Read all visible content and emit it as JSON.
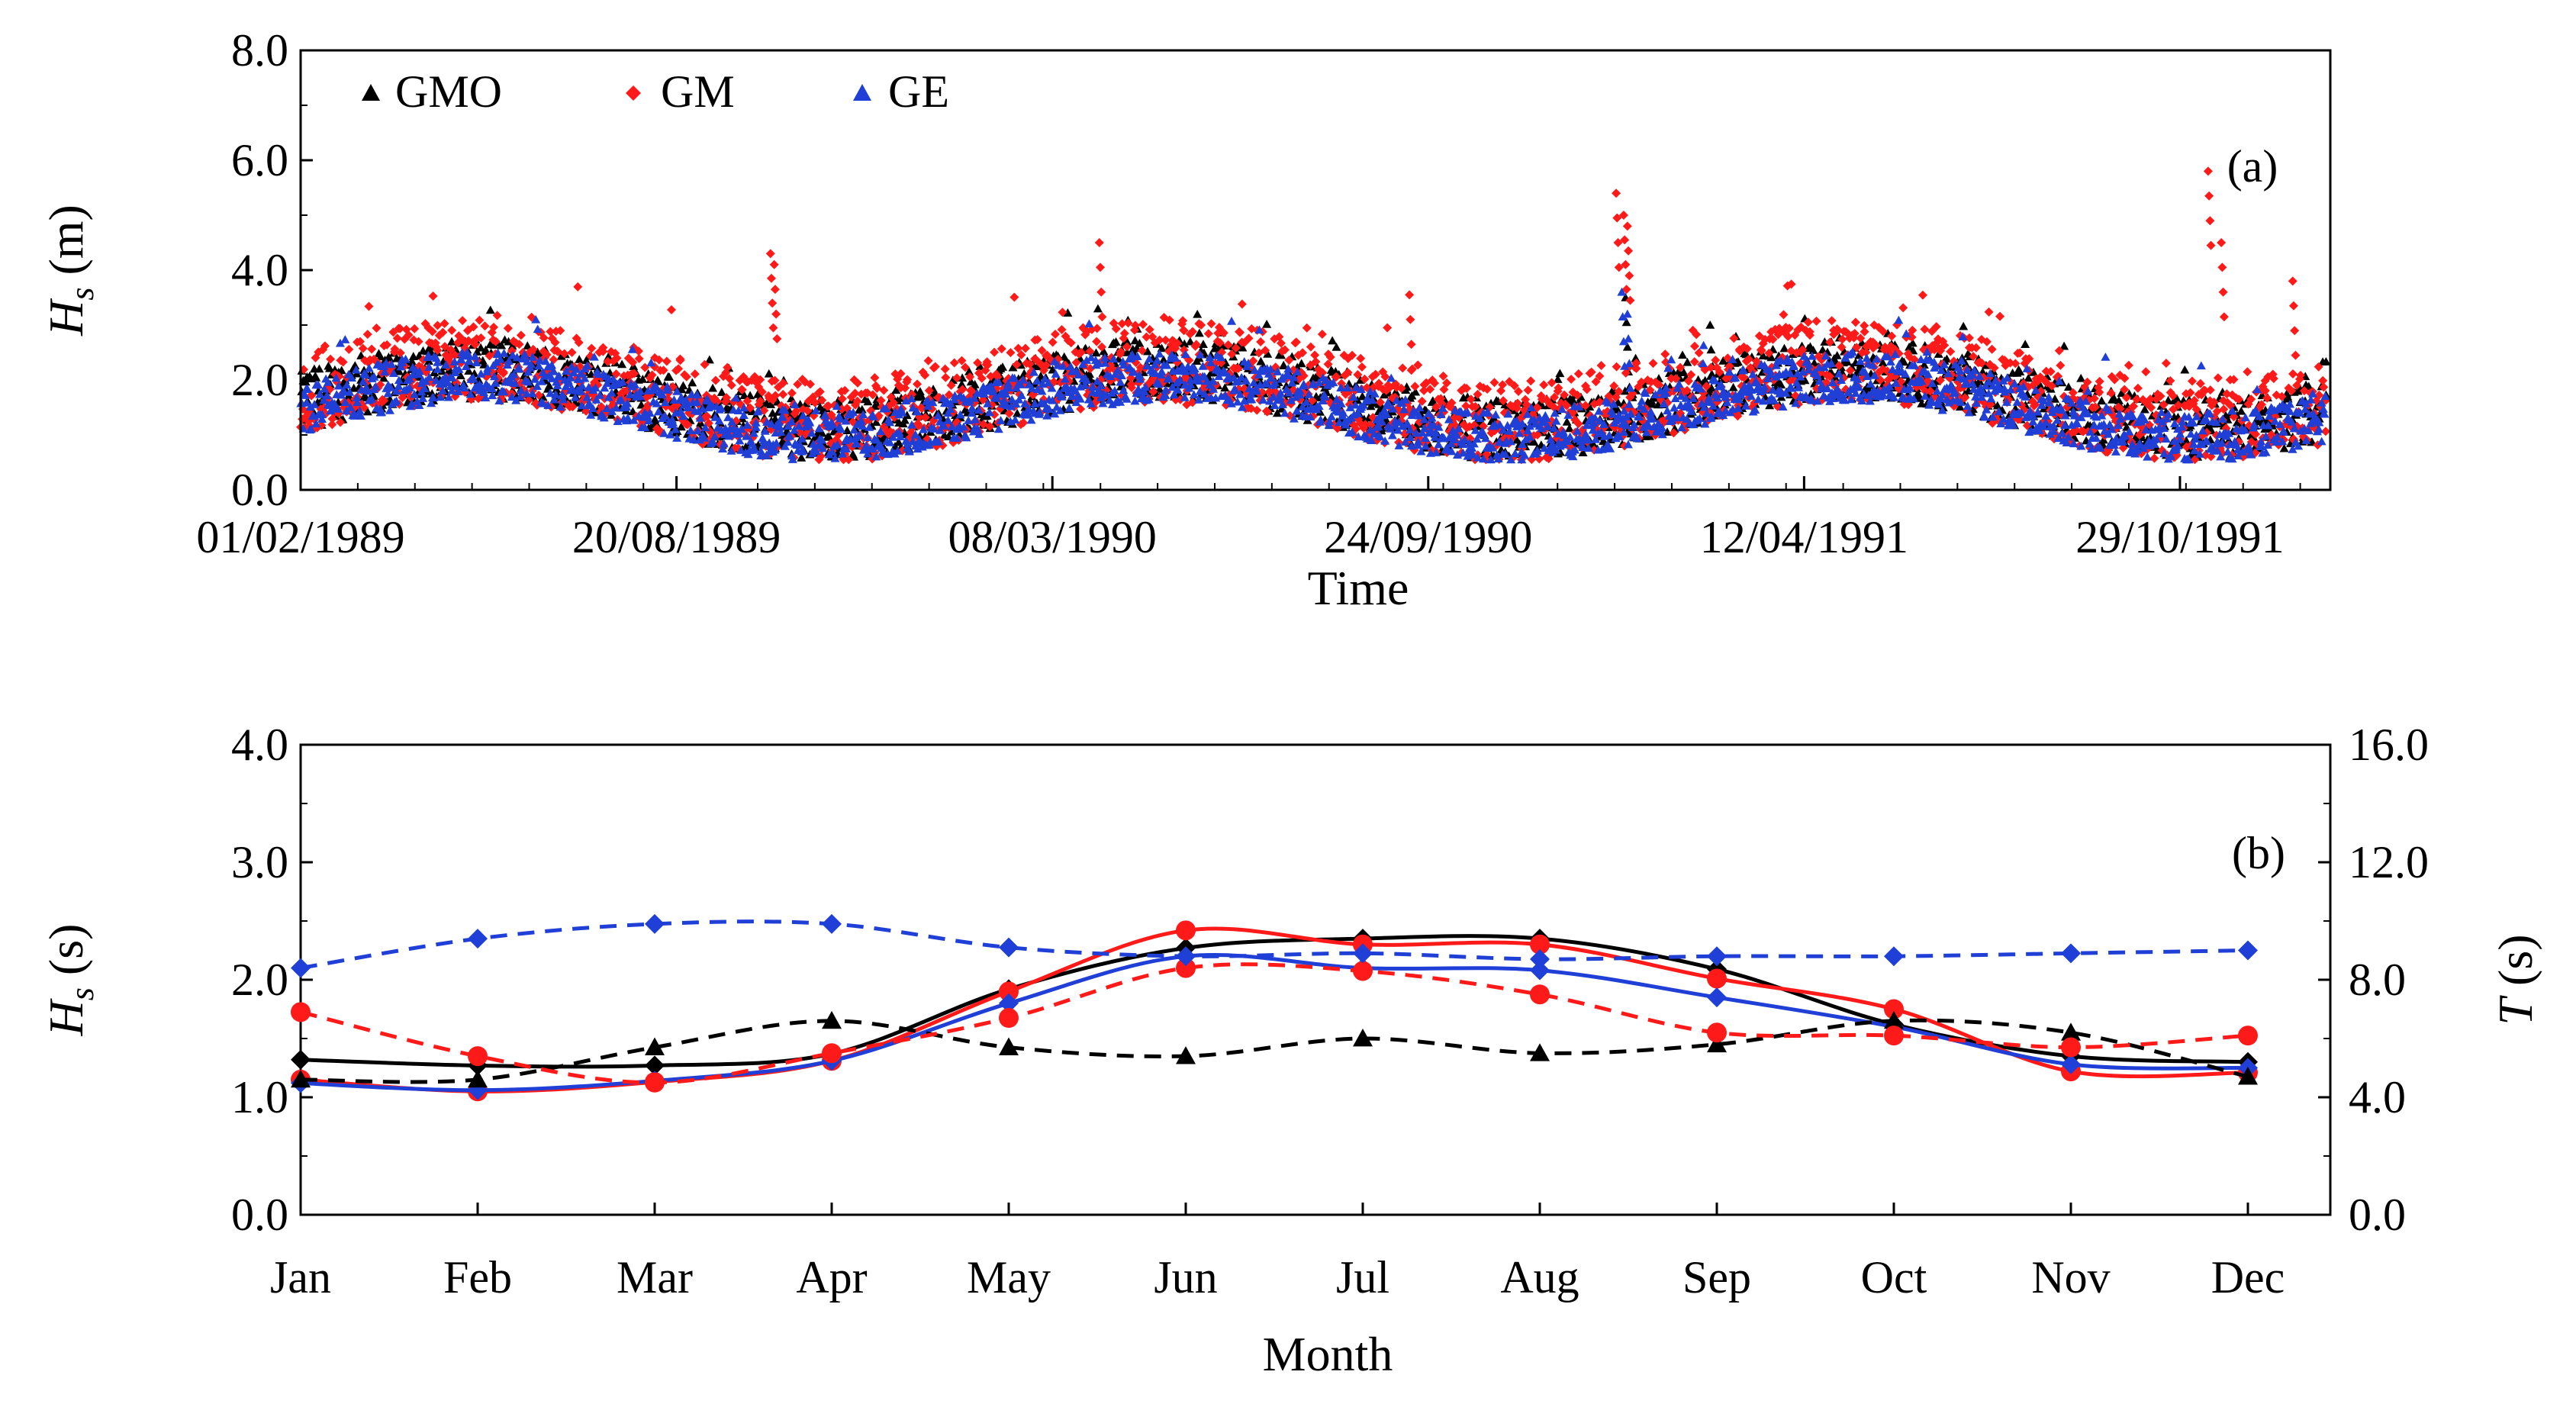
{
  "chart_data": [
    {
      "panel": "(a)",
      "type": "scatter",
      "xlabel": "Time",
      "ylabel": {
        "main": "H",
        "sub": "s",
        "unit": " (m)"
      },
      "ylim": [
        0,
        8
      ],
      "yticks": [
        "0.0",
        "2.0",
        "4.0",
        "6.0",
        "8.0"
      ],
      "xlim": [
        0,
        1080
      ],
      "xticks": [
        {
          "label": "01/02/1989",
          "t": 0
        },
        {
          "label": "20/08/1989",
          "t": 200
        },
        {
          "label": "08/03/1990",
          "t": 400
        },
        {
          "label": "24/09/1990",
          "t": 600
        },
        {
          "label": "12/04/1991",
          "t": 800
        },
        {
          "label": "29/10/1991",
          "t": 1000
        }
      ],
      "series": [
        {
          "name": "GMO",
          "color": "#000000",
          "marker": "triangle"
        },
        {
          "name": "GM",
          "color": "#ff1a1a",
          "marker": "diamond"
        },
        {
          "name": "GE",
          "color": "#1f3fd6",
          "marker": "triangle"
        }
      ]
    },
    {
      "panel": "(b)",
      "type": "line",
      "xlabel": "Month",
      "ylabel_left": {
        "main": "H",
        "sub": "s",
        "unit": " (s)"
      },
      "ylabel_right": {
        "main": "T",
        "unit": " (s)"
      },
      "categories": [
        "Jan",
        "Feb",
        "Mar",
        "Apr",
        "May",
        "Jun",
        "Jul",
        "Aug",
        "Sep",
        "Oct",
        "Nov",
        "Dec"
      ],
      "ylim_left": [
        0,
        4
      ],
      "yticks_left": [
        "0.0",
        "1.0",
        "2.0",
        "3.0",
        "4.0"
      ],
      "ylim_right": [
        0,
        16
      ],
      "yticks_right": [
        "0.0",
        "4.0",
        "8.0",
        "12.0",
        "16.0"
      ],
      "series": [
        {
          "name": "GMO Hs",
          "axis": "left",
          "color": "#000000",
          "dash": false,
          "marker": "diamond",
          "values": [
            1.32,
            1.27,
            1.27,
            1.37,
            1.92,
            2.27,
            2.35,
            2.35,
            2.09,
            1.62,
            1.35,
            1.3
          ]
        },
        {
          "name": "GM Hs",
          "axis": "left",
          "color": "#ff1a1a",
          "dash": false,
          "marker": "circle",
          "values": [
            1.15,
            1.05,
            1.13,
            1.31,
            1.9,
            2.42,
            2.3,
            2.3,
            2.01,
            1.75,
            1.22,
            1.21
          ]
        },
        {
          "name": "GE Hs",
          "axis": "left",
          "color": "#1f3fd6",
          "dash": false,
          "marker": "diamond",
          "values": [
            1.12,
            1.06,
            1.14,
            1.31,
            1.8,
            2.2,
            2.1,
            2.08,
            1.85,
            1.6,
            1.28,
            1.25
          ]
        },
        {
          "name": "GMO T",
          "axis": "right",
          "color": "#000000",
          "dash": true,
          "marker": "triangle",
          "values": [
            4.6,
            4.6,
            5.7,
            6.6,
            5.7,
            5.4,
            6.0,
            5.5,
            5.8,
            6.6,
            6.2,
            4.7
          ]
        },
        {
          "name": "GM T",
          "axis": "right",
          "color": "#ff1a1a",
          "dash": true,
          "marker": "circle",
          "values": [
            6.9,
            5.4,
            4.5,
            5.5,
            6.7,
            8.4,
            8.3,
            7.5,
            6.2,
            6.1,
            5.7,
            6.1
          ]
        },
        {
          "name": "GE T",
          "axis": "right",
          "color": "#1f3fd6",
          "dash": true,
          "marker": "diamond",
          "values": [
            8.4,
            9.4,
            9.9,
            9.9,
            9.1,
            8.8,
            8.9,
            8.7,
            8.8,
            8.8,
            8.9,
            9.0
          ]
        }
      ]
    }
  ]
}
